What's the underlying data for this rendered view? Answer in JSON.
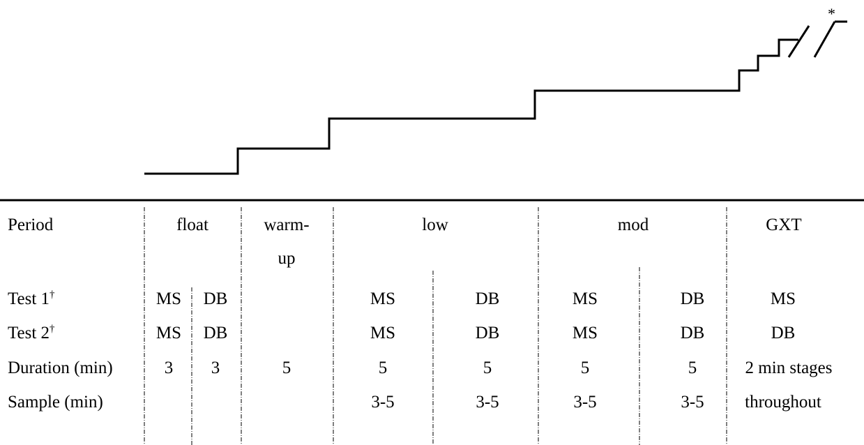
{
  "step_marker": "*",
  "table": {
    "period": {
      "label": "Period",
      "float": "float",
      "warmup_line1": "warm-",
      "warmup_line2": "up",
      "low": "low",
      "mod": "mod",
      "gxt": "GXT"
    },
    "test1": {
      "label": "Test 1",
      "mark": "†",
      "float_a": "MS",
      "float_b": "DB",
      "low_a": "MS",
      "low_b": "DB",
      "mod_a": "MS",
      "mod_b": "DB",
      "gxt": "MS"
    },
    "test2": {
      "label": "Test 2",
      "mark": "†",
      "float_a": "MS",
      "float_b": "DB",
      "low_a": "MS",
      "low_b": "DB",
      "mod_a": "MS",
      "mod_b": "DB",
      "gxt": "DB"
    },
    "duration": {
      "label": "Duration (min)",
      "float_a": "3",
      "float_b": "3",
      "warmup": "5",
      "low_a": "5",
      "low_b": "5",
      "mod_a": "5",
      "mod_b": "5",
      "gxt": "2 min stages"
    },
    "sample": {
      "label": "Sample (min)",
      "low_a": "3-5",
      "low_b": "3-5",
      "mod_a": "3-5",
      "mod_b": "3-5",
      "gxt": "throughout"
    }
  }
}
